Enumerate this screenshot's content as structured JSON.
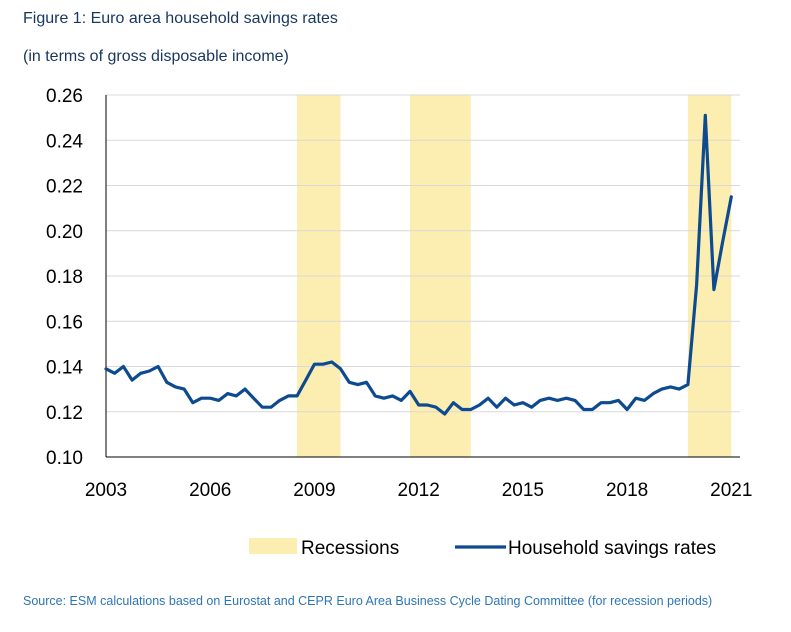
{
  "header": {
    "title": "Figure 1: Euro area household savings rates",
    "subtitle": "(in terms of gross disposable income)"
  },
  "footer": {
    "source": "Source: ESM calculations based on Eurostat and CEPR Euro Area Business Cycle Dating Committee (for recession periods)"
  },
  "colors": {
    "line": "#0d4a8f",
    "recession": "#fbeeb0",
    "text": "#17375e",
    "source": "#2e75b6"
  },
  "chart_data": {
    "type": "line",
    "title": "Figure 1: Euro area household savings rates",
    "subtitle": "(in terms of gross disposable income)",
    "xlabel": "",
    "ylabel": "",
    "xlim": [
      2003.0,
      2021.25
    ],
    "ylim": [
      0.1,
      0.26
    ],
    "yticks": [
      0.1,
      0.12,
      0.14,
      0.16,
      0.18,
      0.2,
      0.22,
      0.24,
      0.26
    ],
    "ytick_labels": [
      "0.10",
      "0.12",
      "0.14",
      "0.16",
      "0.18",
      "0.20",
      "0.22",
      "0.24",
      "0.26"
    ],
    "xticks": [
      2003,
      2006,
      2009,
      2012,
      2015,
      2018,
      2021
    ],
    "xtick_labels": [
      "2003",
      "2006",
      "2009",
      "2012",
      "2015",
      "2018",
      "2021"
    ],
    "grid": "horizontal",
    "recessions": [
      {
        "start": 2008.5,
        "end": 2009.75
      },
      {
        "start": 2011.75,
        "end": 2013.5
      },
      {
        "start": 2019.75,
        "end": 2021.0
      }
    ],
    "legend": [
      {
        "label": "Recessions",
        "type": "area"
      },
      {
        "label": "Household savings rates",
        "type": "line"
      }
    ],
    "series": [
      {
        "name": "Household savings rates",
        "x": [
          2003.0,
          2003.25,
          2003.5,
          2003.75,
          2004.0,
          2004.25,
          2004.5,
          2004.75,
          2005.0,
          2005.25,
          2005.5,
          2005.75,
          2006.0,
          2006.25,
          2006.5,
          2006.75,
          2007.0,
          2007.25,
          2007.5,
          2007.75,
          2008.0,
          2008.25,
          2008.5,
          2008.75,
          2009.0,
          2009.25,
          2009.5,
          2009.75,
          2010.0,
          2010.25,
          2010.5,
          2010.75,
          2011.0,
          2011.25,
          2011.5,
          2011.75,
          2012.0,
          2012.25,
          2012.5,
          2012.75,
          2013.0,
          2013.25,
          2013.5,
          2013.75,
          2014.0,
          2014.25,
          2014.5,
          2014.75,
          2015.0,
          2015.25,
          2015.5,
          2015.75,
          2016.0,
          2016.25,
          2016.5,
          2016.75,
          2017.0,
          2017.25,
          2017.5,
          2017.75,
          2018.0,
          2018.25,
          2018.5,
          2018.75,
          2019.0,
          2019.25,
          2019.5,
          2019.75,
          2020.0,
          2020.25,
          2020.5,
          2020.75,
          2021.0
        ],
        "values": [
          0.139,
          0.137,
          0.14,
          0.134,
          0.137,
          0.138,
          0.14,
          0.133,
          0.131,
          0.13,
          0.124,
          0.126,
          0.126,
          0.125,
          0.128,
          0.127,
          0.13,
          0.126,
          0.122,
          0.122,
          0.125,
          0.127,
          0.127,
          0.134,
          0.141,
          0.141,
          0.142,
          0.139,
          0.133,
          0.132,
          0.133,
          0.127,
          0.126,
          0.127,
          0.125,
          0.129,
          0.123,
          0.123,
          0.122,
          0.119,
          0.124,
          0.121,
          0.121,
          0.123,
          0.126,
          0.122,
          0.126,
          0.123,
          0.124,
          0.122,
          0.125,
          0.126,
          0.125,
          0.126,
          0.125,
          0.121,
          0.121,
          0.124,
          0.124,
          0.125,
          0.121,
          0.126,
          0.125,
          0.128,
          0.13,
          0.131,
          0.13,
          0.132,
          0.176,
          0.251,
          0.174,
          0.195,
          0.215
        ]
      }
    ]
  }
}
